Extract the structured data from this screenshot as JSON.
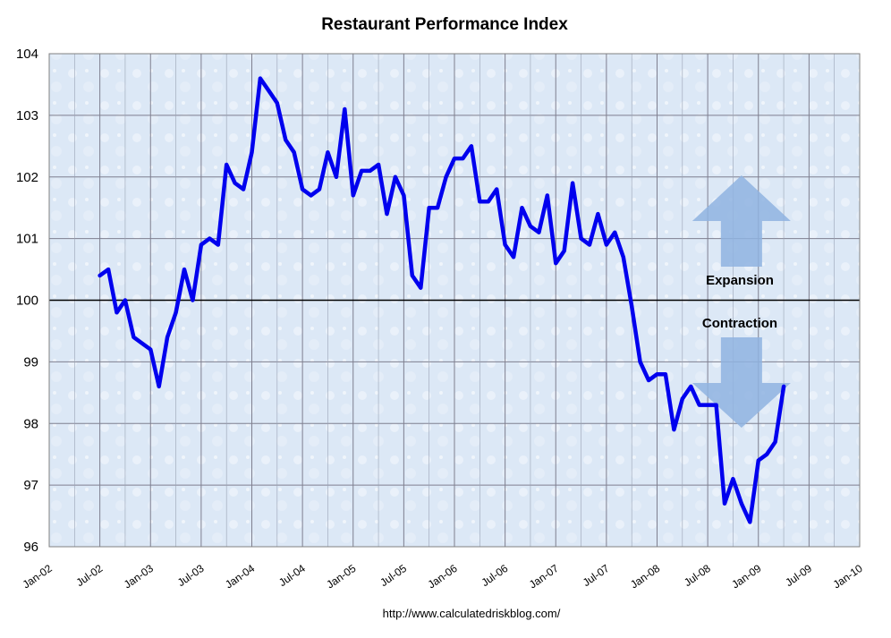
{
  "chart_data": {
    "type": "line",
    "title": "Restaurant Performance Index",
    "xlabel": "",
    "ylabel": "",
    "ylim": [
      96,
      104
    ],
    "yticks": [
      "96",
      "97",
      "98",
      "99",
      "100",
      "101",
      "102",
      "103",
      "104"
    ],
    "xticks": [
      "Jan-02",
      "Jul-02",
      "Jan-03",
      "Jul-03",
      "Jan-04",
      "Jul-04",
      "Jan-05",
      "Jul-05",
      "Jan-06",
      "Jul-06",
      "Jan-07",
      "Jul-07",
      "Jan-08",
      "Jul-08",
      "Jan-09",
      "Jul-09",
      "Jan-10"
    ],
    "xlim": [
      "2002-01",
      "2010-01"
    ],
    "grid": true,
    "reference_line": 100,
    "series": [
      {
        "color": "#0000ee",
        "points": [
          [
            "2002-07",
            100.4
          ],
          [
            "2002-08",
            100.5
          ],
          [
            "2002-09",
            99.8
          ],
          [
            "2002-10",
            100.0
          ],
          [
            "2002-11",
            99.4
          ],
          [
            "2002-12",
            99.3
          ],
          [
            "2003-01",
            99.2
          ],
          [
            "2003-02",
            98.6
          ],
          [
            "2003-03",
            99.4
          ],
          [
            "2003-04",
            99.8
          ],
          [
            "2003-05",
            100.5
          ],
          [
            "2003-06",
            100.0
          ],
          [
            "2003-07",
            100.9
          ],
          [
            "2003-08",
            101.0
          ],
          [
            "2003-09",
            100.9
          ],
          [
            "2003-10",
            102.2
          ],
          [
            "2003-11",
            101.9
          ],
          [
            "2003-12",
            101.8
          ],
          [
            "2004-01",
            102.4
          ],
          [
            "2004-02",
            103.6
          ],
          [
            "2004-03",
            103.4
          ],
          [
            "2004-04",
            103.2
          ],
          [
            "2004-05",
            102.6
          ],
          [
            "2004-06",
            102.4
          ],
          [
            "2004-07",
            101.8
          ],
          [
            "2004-08",
            101.7
          ],
          [
            "2004-09",
            101.8
          ],
          [
            "2004-10",
            102.4
          ],
          [
            "2004-11",
            102.0
          ],
          [
            "2004-12",
            103.1
          ],
          [
            "2005-01",
            101.7
          ],
          [
            "2005-02",
            102.1
          ],
          [
            "2005-03",
            102.1
          ],
          [
            "2005-04",
            102.2
          ],
          [
            "2005-05",
            101.4
          ],
          [
            "2005-06",
            102.0
          ],
          [
            "2005-07",
            101.7
          ],
          [
            "2005-08",
            100.4
          ],
          [
            "2005-09",
            100.2
          ],
          [
            "2005-10",
            101.5
          ],
          [
            "2005-11",
            101.5
          ],
          [
            "2005-12",
            102.0
          ],
          [
            "2006-01",
            102.3
          ],
          [
            "2006-02",
            102.3
          ],
          [
            "2006-03",
            102.5
          ],
          [
            "2006-04",
            101.6
          ],
          [
            "2006-05",
            101.6
          ],
          [
            "2006-06",
            101.8
          ],
          [
            "2006-07",
            100.9
          ],
          [
            "2006-08",
            100.7
          ],
          [
            "2006-09",
            101.5
          ],
          [
            "2006-10",
            101.2
          ],
          [
            "2006-11",
            101.1
          ],
          [
            "2006-12",
            101.7
          ],
          [
            "2007-01",
            100.6
          ],
          [
            "2007-02",
            100.8
          ],
          [
            "2007-03",
            101.9
          ],
          [
            "2007-04",
            101.0
          ],
          [
            "2007-05",
            100.9
          ],
          [
            "2007-06",
            101.4
          ],
          [
            "2007-07",
            100.9
          ],
          [
            "2007-08",
            101.1
          ],
          [
            "2007-09",
            100.7
          ],
          [
            "2007-10",
            99.9
          ],
          [
            "2007-11",
            99.0
          ],
          [
            "2007-12",
            98.7
          ],
          [
            "2008-01",
            98.8
          ],
          [
            "2008-02",
            98.8
          ],
          [
            "2008-03",
            97.9
          ],
          [
            "2008-04",
            98.4
          ],
          [
            "2008-05",
            98.6
          ],
          [
            "2008-06",
            98.3
          ],
          [
            "2008-07",
            98.3
          ],
          [
            "2008-08",
            98.3
          ],
          [
            "2008-09",
            96.7
          ],
          [
            "2008-10",
            97.1
          ],
          [
            "2008-11",
            96.7
          ],
          [
            "2008-12",
            96.4
          ],
          [
            "2009-01",
            97.4
          ],
          [
            "2009-02",
            97.5
          ],
          [
            "2009-03",
            97.7
          ],
          [
            "2009-04",
            98.6
          ]
        ]
      }
    ],
    "annotations": [
      "Expansion",
      "Contraction"
    ]
  },
  "source_url": "http://www.calculatedriskblog.com/",
  "colors": {
    "plot_bg": "#dce8f6",
    "grid": "#7f7f8f",
    "line": "#0000ee",
    "arrow": "#8fb3e0"
  }
}
